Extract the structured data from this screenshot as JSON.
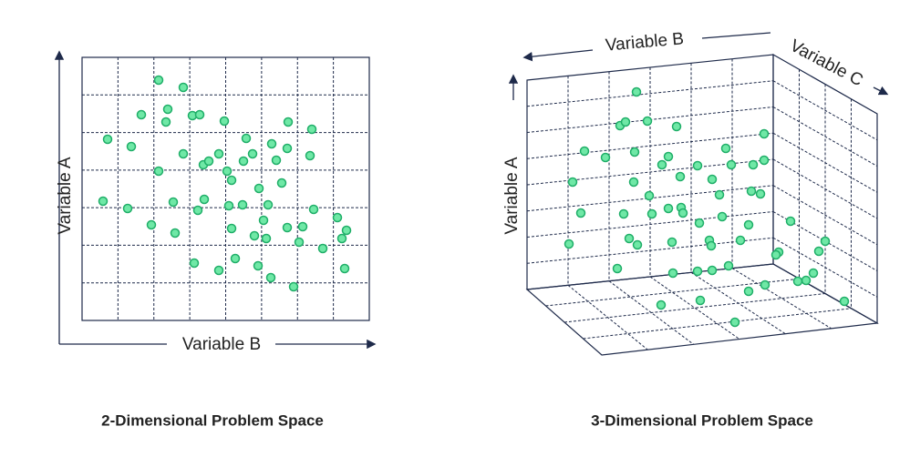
{
  "left": {
    "y_axis": "Variable A",
    "x_axis": "Variable B",
    "caption": "2-Dimensional Problem Space"
  },
  "right": {
    "y_axis": "Variable A",
    "x_axis": "Variable B",
    "z_axis": "Variable C",
    "caption": "3-Dimensional Problem Space"
  }
}
